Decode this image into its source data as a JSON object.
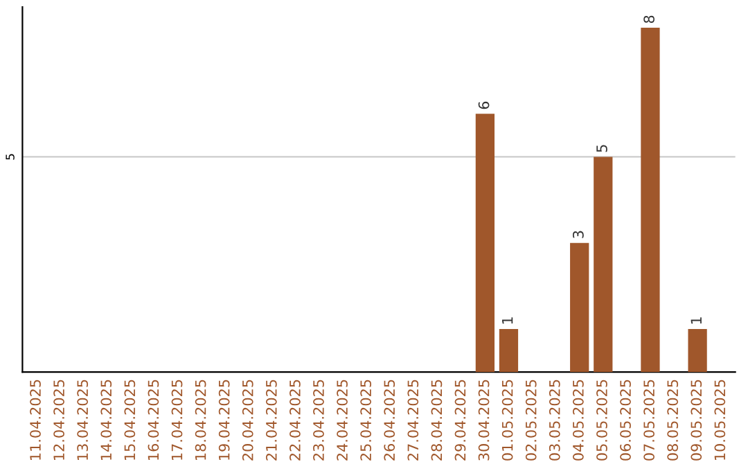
{
  "chart_data": {
    "type": "bar",
    "categories": [
      "11.04.2025",
      "12.04.2025",
      "13.04.2025",
      "14.04.2025",
      "15.04.2025",
      "16.04.2025",
      "17.04.2025",
      "18.04.2025",
      "19.04.2025",
      "20.04.2025",
      "21.04.2025",
      "22.04.2025",
      "23.04.2025",
      "24.04.2025",
      "25.04.2025",
      "26.04.2025",
      "27.04.2025",
      "28.04.2025",
      "29.04.2025",
      "30.04.2025",
      "01.05.2025",
      "02.05.2025",
      "03.05.2025",
      "04.05.2025",
      "05.05.2025",
      "06.05.2025",
      "07.05.2025",
      "08.05.2025",
      "09.05.2025",
      "10.05.2025"
    ],
    "values": [
      null,
      null,
      null,
      null,
      null,
      null,
      null,
      null,
      null,
      null,
      null,
      null,
      null,
      null,
      null,
      null,
      null,
      null,
      null,
      6,
      1,
      null,
      null,
      3,
      5,
      null,
      8,
      null,
      1,
      null
    ],
    "value_labels": [
      null,
      null,
      null,
      null,
      null,
      null,
      null,
      null,
      null,
      null,
      null,
      null,
      null,
      null,
      null,
      null,
      null,
      null,
      null,
      "6",
      "1",
      null,
      null,
      "3",
      "5",
      null,
      "8",
      null,
      "1",
      null
    ],
    "color": "#a0572b",
    "ref_lines": [
      {
        "axis": "y",
        "value": 5,
        "label": "5",
        "color": "#cccccc"
      }
    ],
    "legend": false
  }
}
